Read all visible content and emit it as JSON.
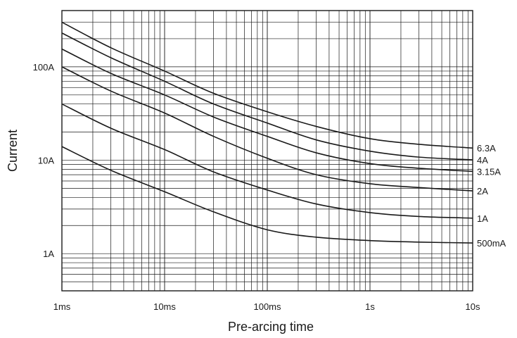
{
  "chart_data": {
    "type": "line",
    "xlabel": "Pre-arcing time",
    "ylabel": "Current",
    "xscale": "log",
    "yscale": "log",
    "xlim": [
      0.001,
      10
    ],
    "ylim": [
      0.4,
      400
    ],
    "grid": true,
    "x_ticks": [
      {
        "value": 0.001,
        "label": "1ms"
      },
      {
        "value": 0.01,
        "label": "10ms"
      },
      {
        "value": 0.1,
        "label": "100ms"
      },
      {
        "value": 1,
        "label": "1s"
      },
      {
        "value": 10,
        "label": "10s"
      }
    ],
    "y_ticks": [
      {
        "value": 1,
        "label": "1A"
      },
      {
        "value": 10,
        "label": "10A"
      },
      {
        "value": 100,
        "label": "100A"
      }
    ],
    "series": [
      {
        "name": "6.3A",
        "points": [
          [
            0.001,
            300
          ],
          [
            0.003,
            160
          ],
          [
            0.01,
            90
          ],
          [
            0.03,
            52
          ],
          [
            0.1,
            33
          ],
          [
            0.3,
            23
          ],
          [
            1,
            17
          ],
          [
            3,
            14.8
          ],
          [
            10,
            13.5
          ]
        ]
      },
      {
        "name": "4A",
        "points": [
          [
            0.001,
            230
          ],
          [
            0.003,
            125
          ],
          [
            0.01,
            70
          ],
          [
            0.03,
            40
          ],
          [
            0.1,
            25
          ],
          [
            0.3,
            16.5
          ],
          [
            1,
            12.5
          ],
          [
            3,
            10.8
          ],
          [
            10,
            10.1
          ]
        ]
      },
      {
        "name": "3.15A",
        "points": [
          [
            0.001,
            155
          ],
          [
            0.003,
            85
          ],
          [
            0.01,
            50
          ],
          [
            0.03,
            29
          ],
          [
            0.1,
            18
          ],
          [
            0.3,
            12
          ],
          [
            1,
            9.2
          ],
          [
            3,
            8.2
          ],
          [
            10,
            7.6
          ]
        ]
      },
      {
        "name": "2A",
        "points": [
          [
            0.001,
            100
          ],
          [
            0.003,
            55
          ],
          [
            0.01,
            32
          ],
          [
            0.03,
            18
          ],
          [
            0.1,
            10.5
          ],
          [
            0.3,
            7
          ],
          [
            1,
            5.6
          ],
          [
            3,
            5.1
          ],
          [
            10,
            4.7
          ]
        ]
      },
      {
        "name": "1A",
        "points": [
          [
            0.001,
            40
          ],
          [
            0.003,
            22
          ],
          [
            0.01,
            13
          ],
          [
            0.03,
            7.5
          ],
          [
            0.1,
            4.8
          ],
          [
            0.3,
            3.4
          ],
          [
            1,
            2.75
          ],
          [
            3,
            2.5
          ],
          [
            10,
            2.4
          ]
        ]
      },
      {
        "name": "500mA",
        "points": [
          [
            0.001,
            14
          ],
          [
            0.003,
            7.8
          ],
          [
            0.01,
            4.6
          ],
          [
            0.03,
            2.8
          ],
          [
            0.1,
            1.8
          ],
          [
            0.3,
            1.5
          ],
          [
            1,
            1.38
          ],
          [
            3,
            1.33
          ],
          [
            10,
            1.3
          ]
        ]
      }
    ]
  }
}
